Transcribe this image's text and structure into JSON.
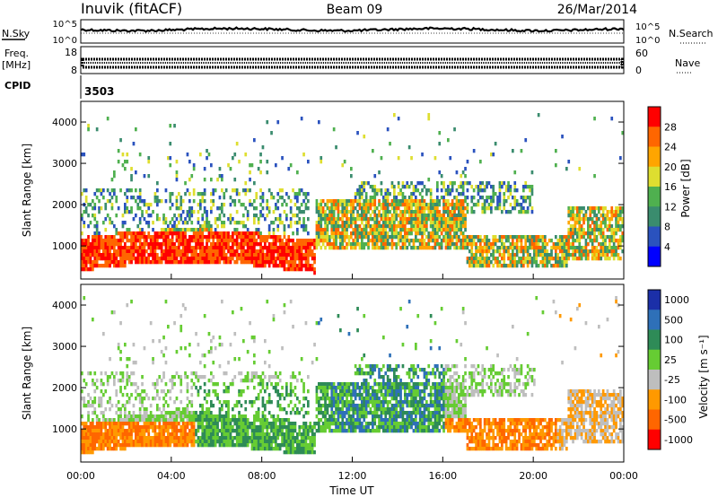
{
  "header": {
    "station": "Inuvik (fitACF)",
    "beam": "Beam 09",
    "date": "26/Mar/2014"
  },
  "top_panels": {
    "nsky_label": "N.Sky",
    "nsky_ticks": [
      "10^5",
      "10^0"
    ],
    "nsearch_label": "N.Search",
    "nsearch_ticks": [
      "10^5",
      "10^0"
    ],
    "freq_label": "Freq.",
    "freq_unit": "[MHz]",
    "freq_ticks": [
      "18",
      "8"
    ],
    "nave_label": "Nave",
    "nave_ticks": [
      "60",
      "0"
    ],
    "cpid_label": "CPID",
    "cpid_value": "3503"
  },
  "chart_data": [
    {
      "type": "heatmap",
      "name": "power",
      "ylabel": "Slant Range [km]",
      "yticks": [
        1000,
        2000,
        3000,
        4000
      ],
      "ylim": [
        200,
        4500
      ],
      "xticks": [
        "00:00",
        "04:00",
        "08:00",
        "12:00",
        "16:00",
        "20:00",
        "00:00"
      ],
      "colorbar_label": "Power [dB]",
      "colorbar_ticks": [
        4,
        8,
        12,
        16,
        20,
        24,
        28
      ],
      "colors": [
        "#0000ff",
        "#2a52be",
        "#3a8c6e",
        "#4fb04f",
        "#dede30",
        "#ffa500",
        "#ff6600",
        "#ff0000"
      ]
    },
    {
      "type": "heatmap",
      "name": "velocity",
      "ylabel": "Slant Range [km]",
      "yticks": [
        1000,
        2000,
        3000,
        4000
      ],
      "ylim": [
        200,
        4500
      ],
      "xticks": [
        "00:00",
        "04:00",
        "08:00",
        "12:00",
        "16:00",
        "20:00",
        "00:00"
      ],
      "xlabel": "Time UT",
      "colorbar_label": "Velocity [m s⁻¹]",
      "colorbar_ticks": [
        1000,
        500,
        100,
        25,
        -25,
        -100,
        -500,
        -1000
      ],
      "colors": [
        "#1b2fa8",
        "#2e70b8",
        "#2e8b57",
        "#66cc33",
        "#bebebe",
        "#ff9900",
        "#ff6600",
        "#ff0000"
      ]
    }
  ]
}
